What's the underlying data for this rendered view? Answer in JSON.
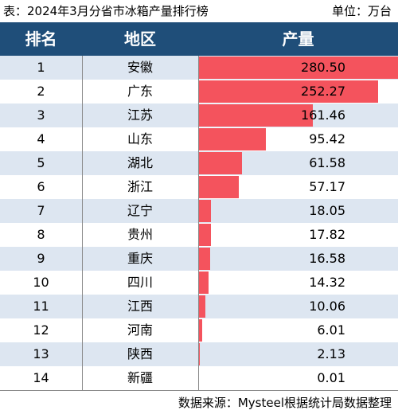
{
  "header": {
    "title": "表：2024年3月分省市冰箱产量排行榜",
    "unit": "单位：万台"
  },
  "columns": {
    "rank": "排名",
    "region": "地区",
    "value": "产量"
  },
  "source": "数据来源：Mysteel根据统计局数据整理",
  "colors": {
    "header_bg": "#1f4e79",
    "bar": "#f4535d",
    "stripe": "#dde6f1"
  },
  "chart_data": {
    "type": "table",
    "rows": [
      {
        "rank": "1",
        "region": "安徽",
        "value": "280.50",
        "num": 280.5
      },
      {
        "rank": "2",
        "region": "广东",
        "value": "252.27",
        "num": 252.27
      },
      {
        "rank": "3",
        "region": "江苏",
        "value": "161.46",
        "num": 161.46
      },
      {
        "rank": "4",
        "region": "山东",
        "value": "95.42",
        "num": 95.42
      },
      {
        "rank": "5",
        "region": "湖北",
        "value": "61.58",
        "num": 61.58
      },
      {
        "rank": "6",
        "region": "浙江",
        "value": "57.17",
        "num": 57.17
      },
      {
        "rank": "7",
        "region": "辽宁",
        "value": "18.05",
        "num": 18.05
      },
      {
        "rank": "8",
        "region": "贵州",
        "value": "17.82",
        "num": 17.82
      },
      {
        "rank": "9",
        "region": "重庆",
        "value": "16.58",
        "num": 16.58
      },
      {
        "rank": "10",
        "region": "四川",
        "value": "14.32",
        "num": 14.32
      },
      {
        "rank": "11",
        "region": "江西",
        "value": "10.06",
        "num": 10.06
      },
      {
        "rank": "12",
        "region": "河南",
        "value": "6.01",
        "num": 6.01
      },
      {
        "rank": "13",
        "region": "陕西",
        "value": "2.13",
        "num": 2.13
      },
      {
        "rank": "14",
        "region": "新疆",
        "value": "0.01",
        "num": 0.01
      }
    ]
  }
}
